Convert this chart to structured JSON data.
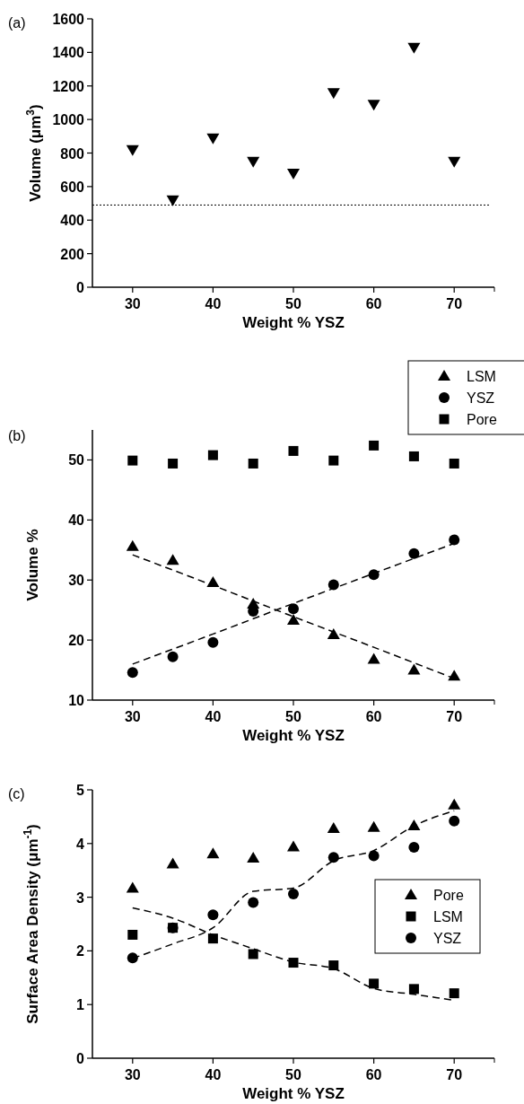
{
  "chart_data": [
    {
      "type": "scatter",
      "annotations": [
        "(a)"
      ],
      "xlabel": "Weight % YSZ",
      "ylabel": "Volume (μm$^{3}$)",
      "x": [
        30,
        35,
        40,
        45,
        50,
        55,
        60,
        65,
        70
      ],
      "xlim": [
        25,
        75
      ],
      "xticks": [
        30,
        40,
        50,
        60,
        70
      ],
      "ylim": [
        0,
        1600
      ],
      "yticks": [
        0,
        200,
        400,
        600,
        800,
        1000,
        1200,
        1400,
        1600
      ],
      "marker": "triangle-down",
      "legend": false,
      "grid": false,
      "series": [
        {
          "color": "#000000",
          "values": [
            820,
            520,
            890,
            750,
            680,
            1160,
            1090,
            1430,
            750
          ]
        }
      ],
      "ref_lines": [
        {
          "axis": "y",
          "value": 490,
          "line_style": "dotted",
          "color": "#000000"
        }
      ]
    },
    {
      "type": "scatter",
      "annotations": [
        "(b)"
      ],
      "xlabel": "Weight % YSZ",
      "ylabel": "Volume %",
      "x": [
        30,
        35,
        40,
        45,
        50,
        55,
        60,
        65,
        70
      ],
      "xlim": [
        25,
        75
      ],
      "xticks": [
        30,
        40,
        50,
        60,
        70
      ],
      "ylim": [
        10,
        55
      ],
      "yticks": [
        10,
        20,
        30,
        40,
        50
      ],
      "legend": "top right",
      "grid": false,
      "series": [
        {
          "name": "LSM",
          "marker": "triangle",
          "color": "#000000",
          "values": [
            35.6,
            33.3,
            29.6,
            26.0,
            23.3,
            20.9,
            16.8,
            15.0,
            14.0
          ]
        },
        {
          "name": "YSZ",
          "marker": "circle",
          "color": "#000000",
          "values": [
            14.6,
            17.2,
            19.6,
            24.8,
            25.2,
            29.2,
            30.9,
            34.4,
            36.7
          ]
        },
        {
          "name": "Pore",
          "marker": "square",
          "color": "#000000",
          "values": [
            49.9,
            49.4,
            50.8,
            49.4,
            51.5,
            49.9,
            52.4,
            50.6,
            49.4
          ]
        },
        {
          "type": "line",
          "line_style": "dashed",
          "color": "#000000",
          "x": [
            30,
            40,
            50,
            60,
            70
          ],
          "values": [
            34.2,
            29.1,
            23.9,
            18.8,
            13.6
          ]
        },
        {
          "type": "line",
          "line_style": "dashed",
          "color": "#000000",
          "x": [
            30,
            40,
            50,
            60,
            70
          ],
          "values": [
            16.0,
            21.0,
            26.1,
            31.1,
            36.1
          ]
        }
      ]
    },
    {
      "type": "scatter",
      "annotations": [
        "(c)"
      ],
      "xlabel": "Weight % YSZ",
      "ylabel": "Surface Area Density (μm$^{-1}$)",
      "x": [
        30,
        35,
        40,
        45,
        50,
        55,
        60,
        65,
        70
      ],
      "xlim": [
        25,
        75
      ],
      "xticks": [
        30,
        40,
        50,
        60,
        70
      ],
      "ylim": [
        0,
        5
      ],
      "yticks": [
        0,
        1,
        2,
        3,
        4,
        5
      ],
      "legend": "right",
      "grid": false,
      "series": [
        {
          "name": "Pore",
          "marker": "triangle",
          "color": "#000000",
          "values": [
            3.17,
            3.62,
            3.81,
            3.73,
            3.94,
            4.28,
            4.3,
            4.33,
            4.72
          ]
        },
        {
          "name": "LSM",
          "marker": "square",
          "color": "#000000",
          "values": [
            2.3,
            2.43,
            2.23,
            1.94,
            1.78,
            1.73,
            1.39,
            1.29,
            1.21
          ]
        },
        {
          "name": "YSZ",
          "marker": "circle",
          "color": "#000000",
          "values": [
            1.87,
            2.43,
            2.67,
            2.9,
            3.06,
            3.74,
            3.77,
            3.93,
            4.42
          ]
        },
        {
          "type": "line",
          "line_style": "dashed",
          "color": "#000000",
          "x": [
            30,
            35,
            40,
            45,
            50,
            55,
            60,
            65,
            70
          ],
          "values": [
            1.86,
            2.13,
            2.43,
            3.11,
            3.17,
            3.68,
            3.87,
            4.33,
            4.61
          ]
        },
        {
          "type": "line",
          "line_style": "dashed",
          "color": "#000000",
          "x": [
            30,
            35,
            40,
            45,
            50,
            55,
            60,
            65,
            70
          ],
          "values": [
            2.8,
            2.61,
            2.3,
            2.04,
            1.79,
            1.67,
            1.3,
            1.19,
            1.08
          ]
        }
      ]
    }
  ]
}
